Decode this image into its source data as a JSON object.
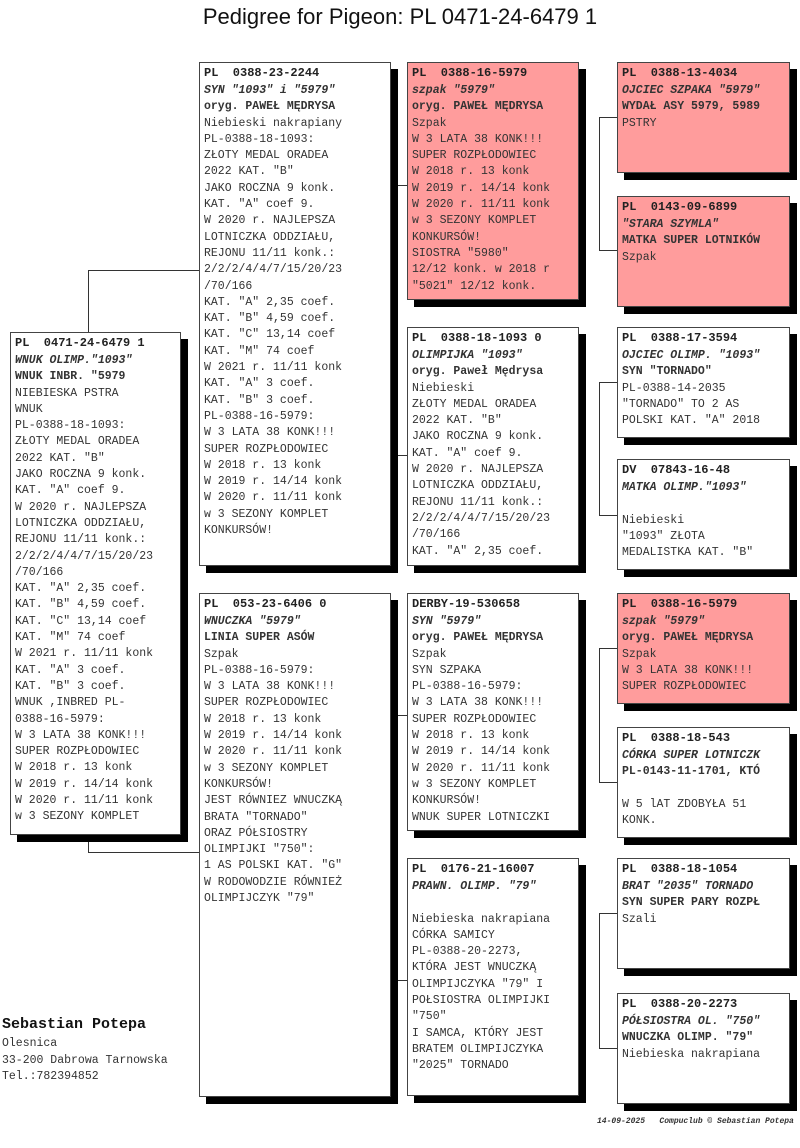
{
  "title": "Pedigree for Pigeon: PL  0471-24-6479 1",
  "highlight_color": "#ff9c9c",
  "pigeons": [
    {
      "ring": "PL  0471-24-6479 1",
      "name": "WNUK OLIMP.\"1093\"",
      "line2": "WNUK INBR. \"5979",
      "highlight": false,
      "notes": [
        "NIEBIESKA PSTRA",
        "WNUK",
        "PL-0388-18-1093:",
        "ZŁOTY MEDAL ORADEA",
        "2022 KAT. \"B\"",
        "JAKO ROCZNA 9 konk.",
        "KAT. \"A\" coef 9.",
        "W 2020 r. NAJLEPSZA",
        "LOTNICZKA ODDZIAŁU,",
        "REJONU 11/11 konk.:",
        "2/2/2/4/4/7/15/20/23",
        "/70/166",
        "KAT. \"A\" 2,35 coef.",
        "KAT. \"B\" 4,59 coef.",
        "KAT. \"C\" 13,14 coef",
        "KAT. \"M\" 74 coef",
        "W 2021 r. 11/11 konk",
        "KAT. \"A\" 3 coef.",
        "KAT. \"B\" 3 coef.",
        "WNUK ,INBRED PL-",
        "0388-16-5979:",
        "W 3 LATA 38 KONK!!!",
        "SUPER ROZPŁODOWIEC",
        "W 2018 r. 13 konk",
        "W 2019 r. 14/14 konk",
        "W 2020 r. 11/11 konk",
        "w 3 SEZONY KOMPLET"
      ]
    },
    {
      "ring": "PL  0388-23-2244",
      "name": "SYN \"1093\" i \"5979\"",
      "line2": "oryg. PAWEŁ MĘDRYSA",
      "highlight": false,
      "notes": [
        "Niebieski nakrapiany",
        "PL-0388-18-1093:",
        "ZŁOTY MEDAL ORADEA",
        "2022 KAT. \"B\"",
        "JAKO ROCZNA 9 konk.",
        "KAT. \"A\" coef 9.",
        "W 2020 r. NAJLEPSZA",
        "LOTNICZKA ODDZIAŁU,",
        "REJONU 11/11 konk.:",
        "2/2/2/4/4/7/15/20/23",
        "/70/166",
        "KAT. \"A\" 2,35 coef.",
        "KAT. \"B\" 4,59 coef.",
        "KAT. \"C\" 13,14 coef",
        "KAT. \"M\" 74 coef",
        "W 2021 r. 11/11 konk",
        "KAT. \"A\" 3 coef.",
        "KAT. \"B\" 3 coef.",
        "PL-0388-16-5979:",
        "W 3 LATA 38 KONK!!!",
        "SUPER ROZPŁODOWIEC",
        "W 2018 r. 13 konk",
        "W 2019 r. 14/14 konk",
        "W 2020 r. 11/11 konk",
        "w 3 SEZONY KOMPLET",
        "KONKURSÓW!"
      ]
    },
    {
      "ring": "PL  053-23-6406 0",
      "name": "WNUCZKA \"5979\"",
      "line2": "LINIA SUPER ASÓW",
      "highlight": false,
      "notes": [
        "Szpak",
        "PL-0388-16-5979:",
        "W 3 LATA 38 KONK!!!",
        "SUPER ROZPŁODOWIEC",
        "W 2018 r. 13 konk",
        "W 2019 r. 14/14 konk",
        "W 2020 r. 11/11 konk",
        "w 3 SEZONY KOMPLET",
        "KONKURSÓW!",
        "JEST RÓWNIEZ WNUCZKĄ",
        "BRATA \"TORNADO\"",
        "ORAZ PÓŁSIOSTRY",
        "OLIMPIJKI \"750\":",
        "1 AS POLSKI KAT. \"G\"",
        "W RODOWODZIE RÓWNIEŻ",
        "OLIMPIJCZYK \"79\""
      ]
    },
    {
      "ring": "PL  0388-16-5979",
      "name": "szpak \"5979\"",
      "line2": "oryg. PAWEŁ MĘDRYSA",
      "highlight": true,
      "notes": [
        "Szpak",
        "W 3 LATA 38 KONK!!!",
        "SUPER ROZPŁODOWIEC",
        "W 2018 r. 13 konk",
        "W 2019 r. 14/14 konk",
        "W 2020 r. 11/11 konk",
        "w 3 SEZONY KOMPLET",
        "KONKURSÓW!",
        "SIOSTRA \"5980\"",
        "12/12 konk. w 2018 r",
        "\"5021\" 12/12 konk."
      ]
    },
    {
      "ring": "PL  0388-18-1093 0",
      "name": "OLIMPIJKA \"1093\"",
      "line2": "oryg. Paweł Mędrysa",
      "highlight": false,
      "notes": [
        "Niebieski",
        "ZŁOTY MEDAL ORADEA",
        "2022 KAT. \"B\"",
        "JAKO ROCZNA 9 konk.",
        "KAT. \"A\" coef 9.",
        "W 2020 r. NAJLEPSZA",
        "LOTNICZKA ODDZIAŁU,",
        "REJONU 11/11 konk.:",
        "2/2/2/4/4/7/15/20/23",
        "/70/166",
        "KAT. \"A\" 2,35 coef."
      ]
    },
    {
      "ring": "DERBY-19-530658",
      "name": "SYN \"5979\"",
      "line2": "oryg. PAWEŁ MĘDRYSA",
      "highlight": false,
      "notes": [
        "Szpak",
        "SYN SZPAKA",
        "PL-0388-16-5979:",
        "W 3 LATA 38 KONK!!!",
        "SUPER ROZPŁODOWIEC",
        "W 2018 r. 13 konk",
        "W 2019 r. 14/14 konk",
        "W 2020 r. 11/11 konk",
        "w 3 SEZONY KOMPLET",
        "KONKURSÓW!",
        "WNUK SUPER LOTNICZKI"
      ]
    },
    {
      "ring": "PL  0176-21-16007",
      "name": "PRAWN. OLIMP. \"79\"",
      "line2": "",
      "highlight": false,
      "notes": [
        "Niebieska nakrapiana",
        "CÓRKA SAMICY",
        "PL-0388-20-2273,",
        "KTÓRA JEST WNUCZKĄ",
        "OLIMPIJCZYKA \"79\" I",
        "POŁSIOSTRA OLIMPIJKI",
        "\"750\"",
        "I SAMCA, KTÓRY JEST",
        "BRATEM OLIMPIJCZYKA",
        "\"2025\" TORNADO"
      ]
    },
    {
      "ring": "PL  0388-13-4034",
      "name": "OJCIEC SZPAKA \"5979\"",
      "line2": "WYDAŁ ASY 5979, 5989",
      "highlight": true,
      "notes": [
        "PSTRY"
      ]
    },
    {
      "ring": "PL  0143-09-6899",
      "name": "\"STARA SZYMLA\"",
      "line2": "MATKA SUPER LOTNIKÓW",
      "highlight": true,
      "notes": [
        "Szpak"
      ]
    },
    {
      "ring": "PL  0388-17-3594",
      "name": "OJCIEC OLIMP. \"1093\"",
      "line2": "SYN \"TORNADO\"",
      "highlight": false,
      "notes": [
        "PL-0388-14-2035",
        "\"TORNADO\" TO 2 AS",
        "POLSKI KAT. \"A\" 2018"
      ]
    },
    {
      "ring": "DV  07843-16-48",
      "name": "MATKA OLIMP.\"1093\"",
      "line2": "",
      "highlight": false,
      "notes": [
        "Niebieski",
        "\"1093\" ZŁOTA",
        "MEDALISTKA KAT. \"B\""
      ]
    },
    {
      "ring": "PL  0388-16-5979",
      "name": "szpak \"5979\"",
      "line2": "oryg. PAWEŁ MĘDRYSA",
      "highlight": true,
      "notes": [
        "Szpak",
        "W 3 LATA 38 KONK!!!",
        "SUPER ROZPŁODOWIEC"
      ]
    },
    {
      "ring": "PL  0388-18-543",
      "name": "CÓRKA SUPER LOTNICZK",
      "line2": "PL-0143-11-1701, KTÓ",
      "highlight": false,
      "notes": [
        "",
        "W 5 lAT ZDOBYŁA 51",
        "KONK."
      ]
    },
    {
      "ring": "PL  0388-18-1054",
      "name": "BRAT \"2035\" TORNADO",
      "line2": "SYN SUPER PARY ROZPŁ",
      "highlight": false,
      "notes": [
        "Szali"
      ]
    },
    {
      "ring": "PL  0388-20-2273",
      "name": "PÓŁSIOSTRA OL. \"750\"",
      "line2": "WNUCZKA OLIMP. \"79\"",
      "highlight": false,
      "notes": [
        "Niebieska nakrapiana"
      ]
    }
  ],
  "breeder": {
    "name": "Sebastian Potepa",
    "city": "Olesnica",
    "address": "33-200  Dabrowa Tarnowska",
    "phone": "Tel.:782394852"
  },
  "footer": {
    "date": "14-09-2025",
    "credit": "Compuclub © Sebastian Potepa"
  }
}
